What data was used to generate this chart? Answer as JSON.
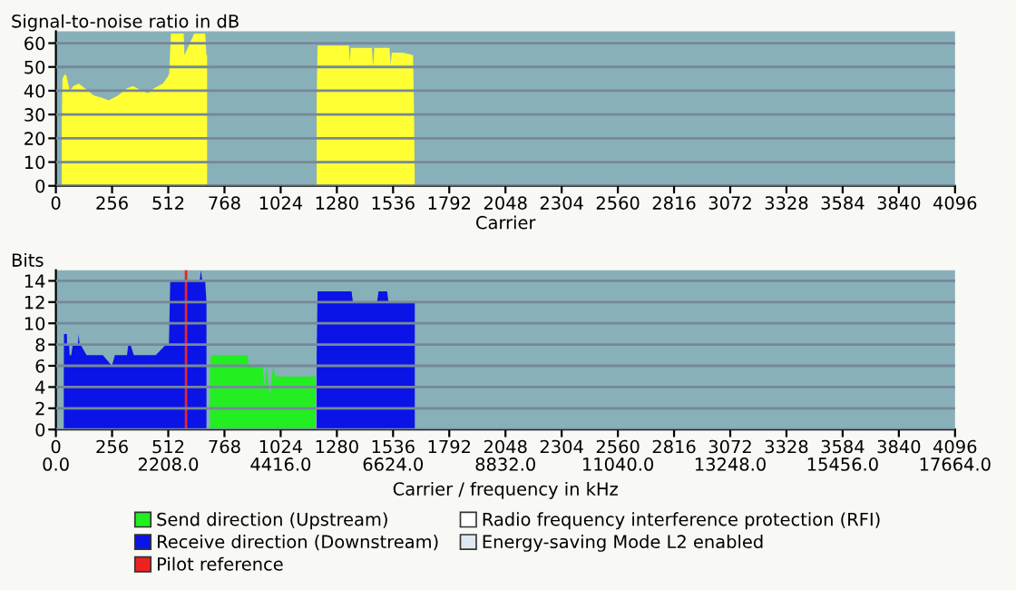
{
  "chart_data": [
    {
      "type": "area",
      "ylabel": "Signal-to-noise ratio in dB",
      "xlabel": "Carrier",
      "xlim": [
        0,
        4096
      ],
      "xticks": [
        0,
        256,
        512,
        768,
        1024,
        1280,
        1536,
        1792,
        2048,
        2304,
        2560,
        2816,
        3072,
        3328,
        3584,
        3840,
        4096
      ],
      "ylim": [
        0,
        65
      ],
      "yticks": [
        0,
        10,
        20,
        30,
        40,
        50,
        60
      ],
      "grid": "y",
      "series": [
        {
          "color": "#ffff33",
          "x": [
            27,
            30,
            41,
            49,
            63,
            80,
            104,
            132,
            173,
            210,
            241,
            283,
            324,
            351,
            392,
            420,
            447,
            488,
            510,
            516,
            524,
            560,
            582,
            586,
            630,
            660,
            680,
            686,
            689,
            700,
            1188,
            1192,
            1250,
            1335,
            1339,
            1343,
            1400,
            1440,
            1445,
            1450,
            1500,
            1520,
            1525,
            1530,
            1580,
            1627,
            1631,
            1635
          ],
          "values": [
            27,
            45,
            47,
            46,
            40,
            42,
            43,
            41,
            38,
            37,
            36,
            38,
            41,
            42,
            40,
            39,
            41,
            43,
            46,
            47,
            64,
            64,
            64,
            55,
            64,
            64,
            64,
            55,
            55,
            null,
            35,
            59,
            59,
            59,
            52,
            58,
            58,
            58,
            50,
            58,
            58,
            58,
            51,
            56,
            56,
            55,
            35,
            0
          ]
        }
      ]
    },
    {
      "type": "area",
      "ylabel": "Bits",
      "xlabel": "Carrier / frequency in kHz",
      "xlim": [
        0,
        4096
      ],
      "xticks": [
        0,
        256,
        512,
        768,
        1024,
        1280,
        1536,
        1792,
        2048,
        2304,
        2560,
        2816,
        3072,
        3328,
        3584,
        3840,
        4096
      ],
      "x2lim": [
        0,
        17664
      ],
      "x2ticks": [
        {
          "value": 0,
          "label": "0.0"
        },
        {
          "value": 2208,
          "label": "2208.0"
        },
        {
          "value": 4416,
          "label": "4416.0"
        },
        {
          "value": 6624,
          "label": "6624.0"
        },
        {
          "value": 8832,
          "label": "8832.0"
        },
        {
          "value": 11040,
          "label": "11040.0"
        },
        {
          "value": 13248,
          "label": "13248.0"
        },
        {
          "value": 15456,
          "label": "15456.0"
        },
        {
          "value": 17664,
          "label": "17664.0"
        }
      ],
      "ylim": [
        0,
        15
      ],
      "yticks": [
        0,
        2,
        4,
        6,
        8,
        10,
        12,
        14
      ],
      "grid": "y",
      "legend": "bottom",
      "series": [
        {
          "name": "Send direction (Upstream)",
          "color": "#22ee22",
          "x": [
            702,
            708,
            873,
            880,
            941,
            950,
            960,
            975,
            990,
            1000,
            1024,
            1174,
            1183
          ],
          "values": [
            6,
            7,
            7,
            6,
            6,
            4,
            6,
            3,
            6,
            5,
            5,
            5,
            5
          ]
        },
        {
          "name": "Receive direction (Downstream)",
          "color": "#0a14e6",
          "x": [
            36,
            37,
            50,
            51,
            60,
            63,
            70,
            77,
            100,
            104,
            108,
            112,
            140,
            214,
            255,
            269,
            324,
            330,
            340,
            355,
            455,
            502,
            515,
            521,
            655,
            661,
            667,
            680,
            686,
            690,
            1188,
            1192,
            1202,
            1347,
            1353,
            1463,
            1470,
            1476,
            1509,
            1515,
            1530,
            1545,
            1627,
            1635
          ],
          "values": [
            5,
            9,
            9,
            8,
            8,
            7,
            7,
            8,
            8,
            9,
            8,
            8,
            7,
            7,
            6,
            7,
            7,
            8,
            8,
            7,
            7,
            8,
            8,
            14,
            14,
            15,
            14,
            14,
            12,
            null,
            7,
            13,
            13,
            13,
            12,
            12,
            13,
            13,
            13,
            12,
            12,
            12,
            12,
            12
          ]
        },
        {
          "name": "Radio frequency interference protection (RFI)",
          "color": "#ffffff"
        },
        {
          "name": "Energy-saving Mode L2 enabled",
          "color": "#dde9ee"
        }
      ],
      "ref_lines": [
        {
          "axis": "x",
          "value": 593,
          "label": "Pilot reference",
          "color": "#ee2222"
        }
      ]
    }
  ]
}
